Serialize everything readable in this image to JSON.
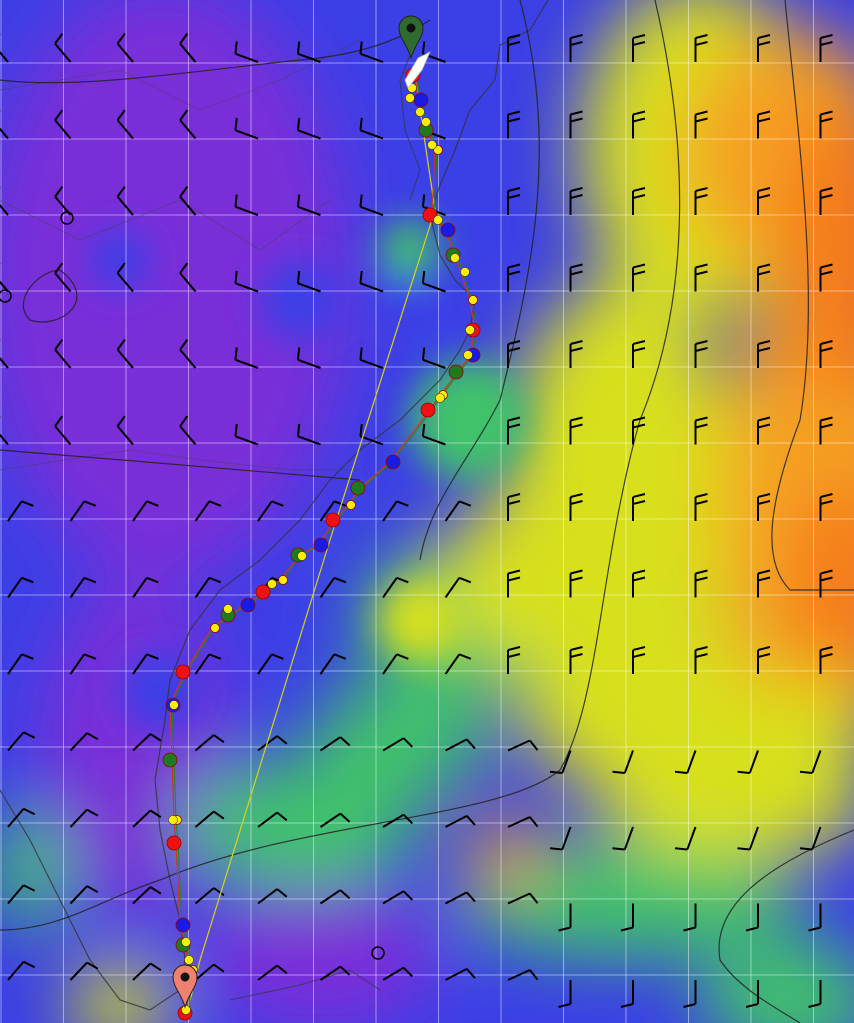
{
  "map": {
    "layer": "wind-speed-heatmap",
    "palette": {
      "calm": "#7a2fd8",
      "light": "#3b3fe6",
      "moderate": "#3fc26a",
      "fresh": "#d8e01a",
      "strong": "#f5a020",
      "gale": "#f57a1c"
    },
    "grid_color": "#ffffff",
    "coastline_color": "#333333",
    "isobar_color": "#222222",
    "barb_color": "#000000"
  },
  "route": {
    "line_colors": [
      "#d4d41a",
      "#cc3333",
      "#1a8a1a"
    ],
    "marker_colors": {
      "red": "#ee1111",
      "blue": "#1a1ae6",
      "green": "#1f7a1f",
      "yellow": "#ffee00"
    }
  },
  "markers": {
    "start": {
      "icon": "map-pin-icon",
      "color": "#2f6b2f"
    },
    "finish": {
      "icon": "map-pin-icon",
      "color": "#f08070"
    },
    "boat": {
      "icon": "boat-icon",
      "color": "#ffffff"
    }
  }
}
